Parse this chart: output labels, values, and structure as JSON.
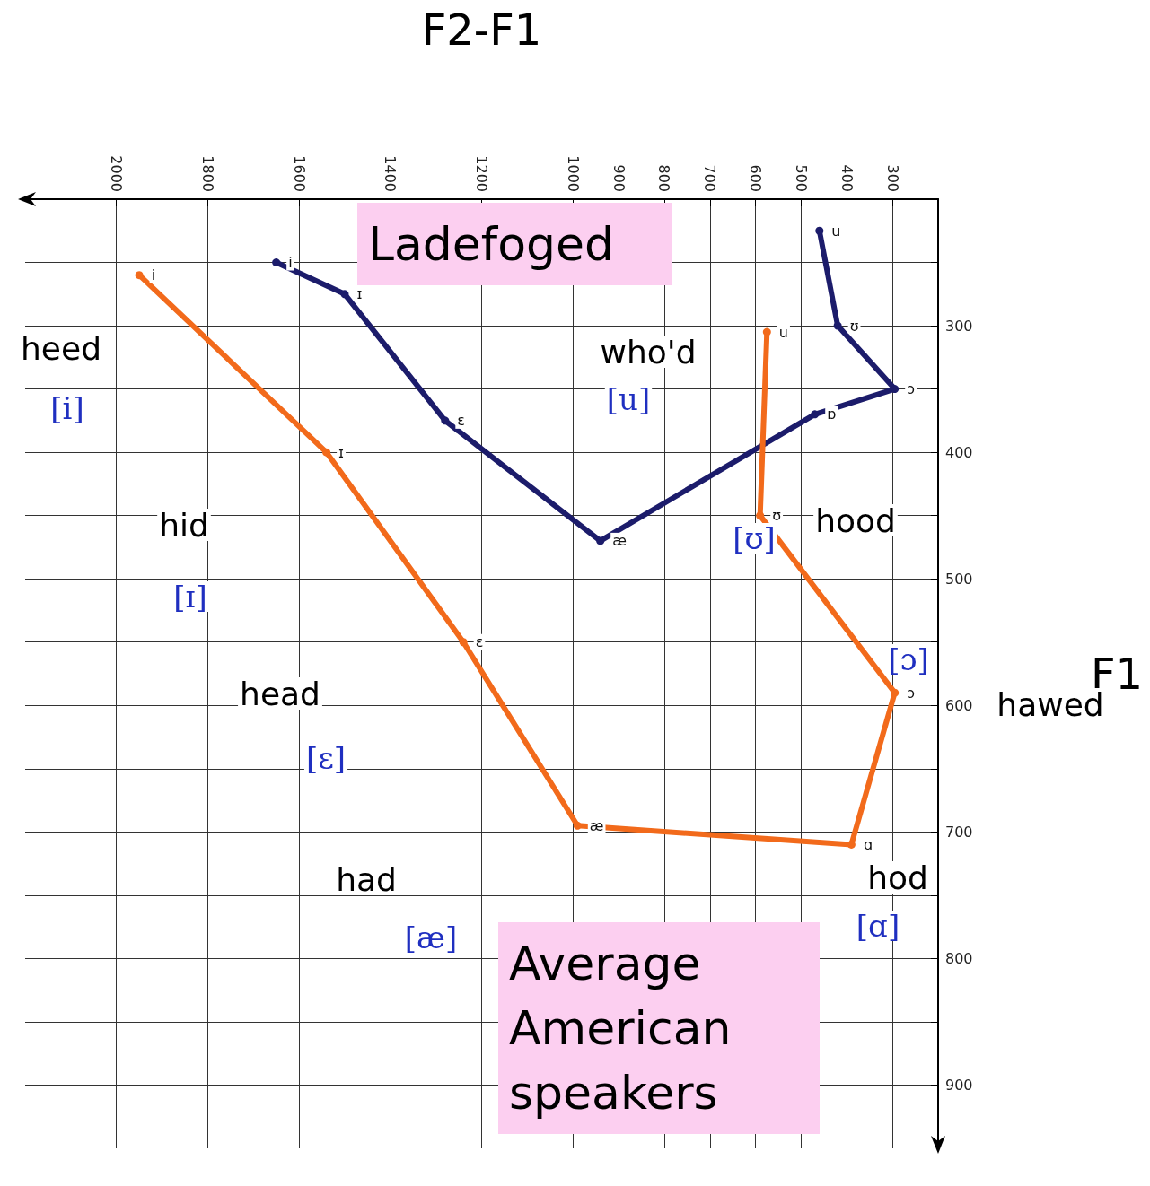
{
  "chart_data": {
    "type": "line",
    "xlabel": "F2-F1",
    "ylabel": "F1",
    "xlim": [
      2200,
      200
    ],
    "ylim": [
      950,
      200
    ],
    "xticks": [
      2000,
      1800,
      1600,
      1400,
      1200,
      1000,
      900,
      800,
      700,
      600,
      500,
      400,
      300
    ],
    "yticks": [
      {
        "value": 250,
        "label": null
      },
      300,
      {
        "value": 350,
        "label": null
      },
      400,
      {
        "value": 450,
        "label": null
      },
      500,
      {
        "value": 550,
        "label": null
      },
      600,
      {
        "value": 650,
        "label": null
      },
      700,
      {
        "value": 750,
        "label": null
      },
      800,
      {
        "value": 850,
        "label": null
      },
      900
    ],
    "grid": true,
    "marker": "circle",
    "line_style": "solid",
    "legend": false,
    "series": [
      {
        "name": "Ladefoged",
        "color": "#1c1c6b",
        "x": [
          1650,
          1500,
          1280,
          940,
          470,
          295,
          420,
          460
        ],
        "values": [
          250,
          275,
          375,
          470,
          370,
          350,
          300,
          225
        ],
        "value_labels": [
          "i",
          "ɪ",
          "ɛ",
          "æ",
          "ɒ",
          "ɔ",
          "ʊ",
          "u"
        ]
      },
      {
        "name": "Average American speakers",
        "color": "#f26a1b",
        "x": [
          1950,
          1540,
          1240,
          990,
          390,
          295,
          590,
          575
        ],
        "values": [
          260,
          400,
          550,
          695,
          710,
          590,
          450,
          305
        ],
        "value_labels": [
          "i",
          "ɪ",
          "ɛ",
          "æ",
          "ɑ",
          "ɔ",
          "ʊ",
          "u"
        ]
      }
    ],
    "annotations": [
      "heed",
      "[i]",
      "hid",
      "[ɪ]",
      "head",
      "[ɛ]",
      "had",
      "[æ]",
      "who'd",
      "[u]",
      "hood",
      "[ʊ]",
      "hod",
      "[ɑ]",
      "hawed",
      "[ɔ]"
    ]
  }
}
